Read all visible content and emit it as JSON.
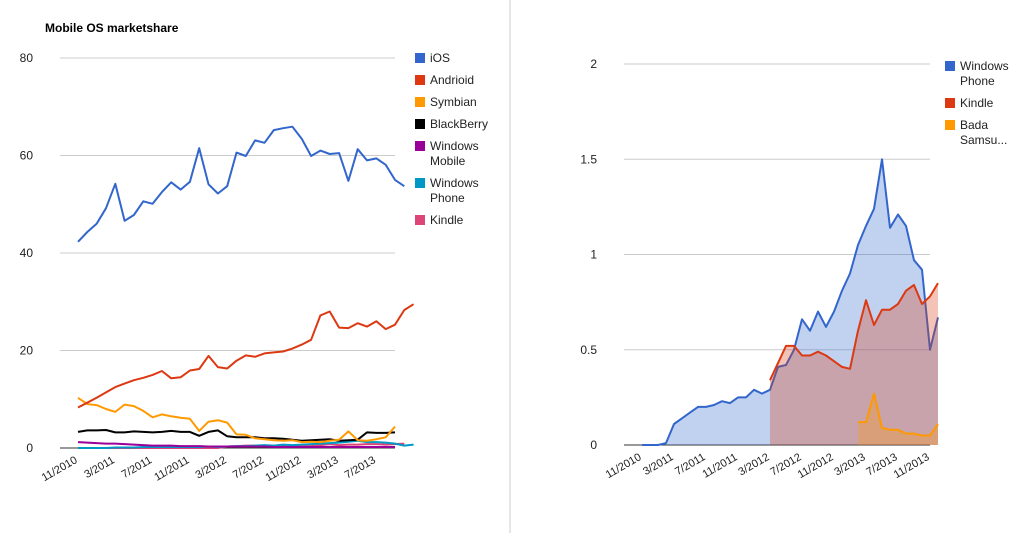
{
  "chart_data": [
    {
      "type": "line",
      "title": "Mobile OS marketshare",
      "ylim": [
        0,
        80
      ],
      "yticks": [
        "0",
        "20",
        "40",
        "60",
        "80"
      ],
      "ytick_values": [
        0,
        20,
        40,
        60,
        80
      ],
      "grid": true,
      "legend": "right",
      "x_ticks": [
        "11/2010",
        "3/2011",
        "7/2011",
        "11/2011",
        "3/2012",
        "7/2012",
        "11/2012",
        "3/2013",
        "7/2013"
      ],
      "x_start": "11/2010",
      "series": [
        {
          "name": "iOS",
          "color": "#3366cc",
          "values": [
            42.3,
            44.3,
            46.0,
            49.2,
            54.2,
            46.6,
            47.8,
            50.6,
            50.1,
            52.5,
            54.5,
            53.0,
            54.6,
            61.5,
            54.1,
            52.2,
            53.7,
            60.6,
            59.9,
            63.1,
            62.6,
            65.2,
            65.6,
            65.9,
            63.4,
            59.9,
            61.0,
            60.3,
            60.5,
            54.8,
            61.3,
            59.0,
            59.4,
            58.1,
            55.0,
            53.7
          ]
        },
        {
          "name": "Andrioid",
          "color": "#dc3912",
          "values": [
            8.3,
            9.3,
            10.3,
            11.4,
            12.5,
            13.2,
            13.9,
            14.4,
            15.0,
            15.8,
            14.3,
            14.5,
            15.9,
            16.2,
            18.9,
            16.6,
            16.3,
            17.9,
            19.0,
            18.7,
            19.4,
            19.6,
            19.8,
            20.4,
            21.2,
            22.2,
            27.2,
            28.0,
            24.7,
            24.6,
            25.6,
            24.9,
            26.0,
            24.4,
            25.3,
            28.3,
            29.5
          ]
        },
        {
          "name": "Symbian",
          "color": "#ff9900",
          "values": [
            10.3,
            9.0,
            8.8,
            8.0,
            7.4,
            8.9,
            8.6,
            7.6,
            6.3,
            6.9,
            6.5,
            6.2,
            6.0,
            3.5,
            5.4,
            5.7,
            5.2,
            2.8,
            2.7,
            2.0,
            1.8,
            1.6,
            1.5,
            1.6,
            1.2,
            1.3,
            1.2,
            1.5,
            1.7,
            3.4,
            1.6,
            1.5,
            1.8,
            2.2,
            4.4
          ]
        },
        {
          "name": "BlackBerry",
          "color": "#000000",
          "values": [
            3.3,
            3.6,
            3.6,
            3.7,
            3.2,
            3.2,
            3.4,
            3.3,
            3.2,
            3.3,
            3.5,
            3.3,
            3.3,
            2.5,
            3.3,
            3.6,
            2.4,
            2.2,
            2.2,
            2.2,
            2.0,
            2.0,
            1.9,
            1.7,
            1.5,
            1.6,
            1.7,
            1.8,
            1.5,
            1.6,
            1.7,
            3.2,
            3.1,
            3.1,
            3.2
          ]
        },
        {
          "name": "Windows\nMobile",
          "color": "#990099",
          "values": [
            1.2,
            1.1,
            1.0,
            0.9,
            0.9,
            0.8,
            0.7,
            0.6,
            0.5,
            0.5,
            0.5,
            0.4,
            0.4,
            0.4,
            0.3,
            0.3,
            0.3,
            0.3,
            0.3,
            0.3,
            0.3,
            0.2,
            0.2,
            0.2,
            0.2,
            0.2,
            0.2,
            0.2,
            0.2,
            0.2,
            0.2,
            0.2,
            0.2,
            0.2,
            0.2
          ]
        },
        {
          "name": "Windows\nPhone",
          "color": "#0099c6",
          "values": [
            0.0,
            0.0,
            0.0,
            0.0,
            0.1,
            0.1,
            0.1,
            0.2,
            0.2,
            0.2,
            0.2,
            0.2,
            0.2,
            0.2,
            0.3,
            0.2,
            0.3,
            0.4,
            0.4,
            0.5,
            0.6,
            0.5,
            0.7,
            0.6,
            0.7,
            0.8,
            0.9,
            1.0,
            1.1,
            1.3,
            1.5,
            1.2,
            1.2,
            1.1,
            0.9,
            0.5,
            0.7
          ]
        },
        {
          "name": "Kindle",
          "color": "#dd4477",
          "values": [
            0.0,
            0.0,
            0.0,
            0.0,
            0.0,
            0.0,
            0.0,
            0.0,
            0.0,
            0.0,
            0.0,
            0.0,
            0.0,
            0.0,
            0.0,
            0.0,
            0.3,
            0.4,
            0.5,
            0.5,
            0.5,
            0.5,
            0.5,
            0.4,
            0.4,
            0.4,
            0.6,
            0.8,
            0.6,
            0.7,
            0.7,
            0.8,
            0.8,
            0.7,
            0.8,
            0.9
          ]
        }
      ]
    },
    {
      "type": "area",
      "title": "",
      "ylim": [
        0,
        2
      ],
      "yticks": [
        "0",
        "0.5",
        "1",
        "1.5",
        "2"
      ],
      "ytick_values": [
        0,
        0.5,
        1,
        1.5,
        2
      ],
      "grid": true,
      "legend": "right",
      "x_ticks": [
        "11/2010",
        "3/2011",
        "7/2011",
        "11/2011",
        "3/2012",
        "7/2012",
        "11/2012",
        "3/2013",
        "7/2013",
        "11/2013"
      ],
      "x_start": "11/2010",
      "series": [
        {
          "name": "Windows\nPhone",
          "color": "#3366cc",
          "start": 0,
          "values": [
            0.0,
            0.0,
            0.0,
            0.01,
            0.11,
            0.14,
            0.17,
            0.2,
            0.2,
            0.21,
            0.23,
            0.22,
            0.25,
            0.25,
            0.29,
            0.27,
            0.29,
            0.41,
            0.42,
            0.5,
            0.66,
            0.6,
            0.7,
            0.62,
            0.7,
            0.81,
            0.9,
            1.05,
            1.15,
            1.24,
            1.5,
            1.14,
            1.21,
            1.15,
            0.97,
            0.92,
            0.5,
            0.67
          ]
        },
        {
          "name": "Kindle",
          "color": "#dc3912",
          "start": 16,
          "values": [
            0.34,
            0.43,
            0.52,
            0.52,
            0.47,
            0.47,
            0.49,
            0.47,
            0.44,
            0.41,
            0.4,
            0.6,
            0.76,
            0.63,
            0.71,
            0.71,
            0.74,
            0.81,
            0.84,
            0.74,
            0.78,
            0.85
          ]
        },
        {
          "name": "Bada\nSamsu...",
          "color": "#ff9900",
          "start": 27,
          "values": [
            0.12,
            0.12,
            0.27,
            0.09,
            0.08,
            0.08,
            0.06,
            0.06,
            0.05,
            0.05,
            0.11
          ]
        }
      ]
    }
  ]
}
